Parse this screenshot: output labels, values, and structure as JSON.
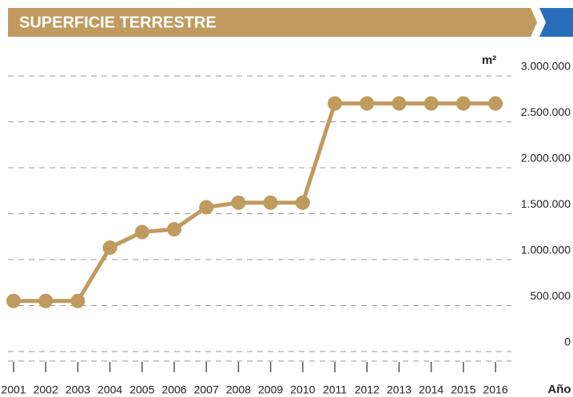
{
  "chart_data": {
    "type": "line",
    "title": "SUPERFICIE TERRESTRE",
    "y_label": "m²",
    "x_label": "Año",
    "categories": [
      "2001",
      "2002",
      "2003",
      "2004",
      "2005",
      "2006",
      "2007",
      "2008",
      "2009",
      "2010",
      "2011",
      "2012",
      "2013",
      "2014",
      "2015",
      "2016"
    ],
    "series": [
      {
        "name": "Superficie terrestre",
        "color": "#c09a5e",
        "values": [
          550000,
          550000,
          550000,
          1130000,
          1300000,
          1330000,
          1570000,
          1620000,
          1620000,
          1620000,
          2700000,
          2700000,
          2700000,
          2700000,
          2700000,
          2700000
        ]
      }
    ],
    "ylim": [
      0,
      3000000
    ],
    "yticks": [
      0,
      {
        "value": 500000,
        "label": "500.000"
      },
      {
        "value": 1000000,
        "label": "1.000.000"
      },
      {
        "value": 1500000,
        "label": "1.500.000"
      },
      {
        "value": 2000000,
        "label": "2.000.000"
      },
      {
        "value": 2500000,
        "label": "2.500.000"
      },
      {
        "value": 3000000,
        "label": "3.000.000"
      }
    ],
    "grid": true
  }
}
